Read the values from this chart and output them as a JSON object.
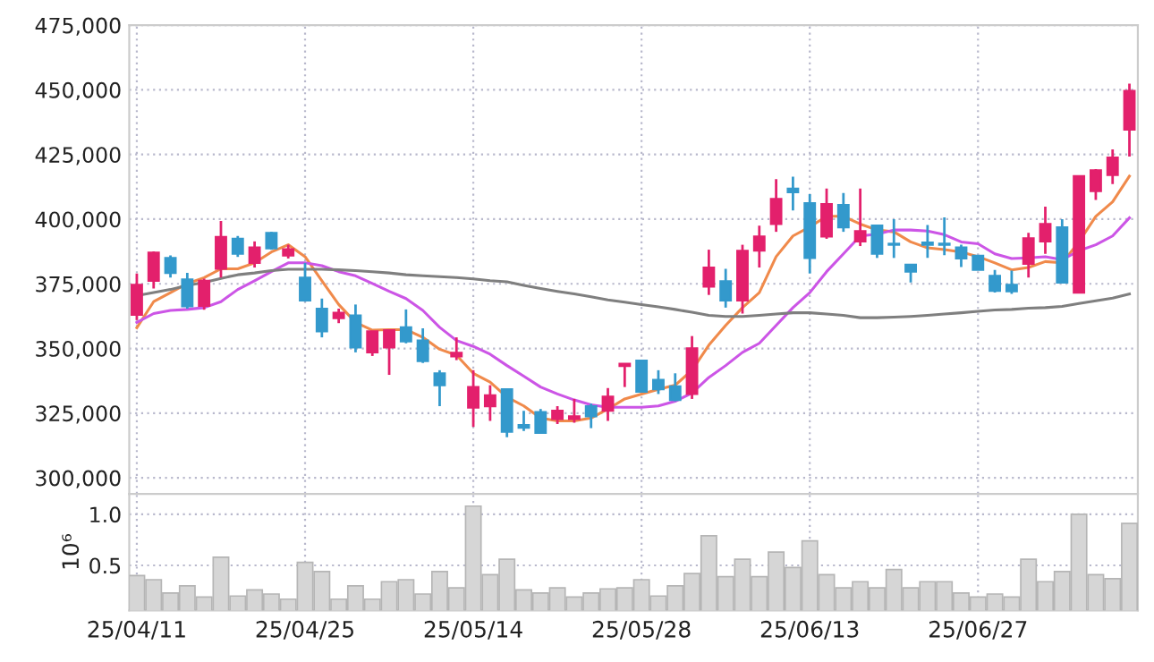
{
  "chart_data": [
    {
      "type": "candlestick",
      "categories": [
        null,
        null,
        null,
        null,
        null,
        null,
        null,
        null,
        null,
        null,
        null,
        null,
        null,
        null,
        null,
        null,
        null,
        null,
        null,
        null,
        null,
        null,
        null,
        null,
        null,
        null,
        null,
        null,
        null,
        null,
        null,
        null,
        null,
        null,
        null,
        null,
        null,
        null,
        null,
        null,
        null,
        null,
        null,
        null,
        null,
        null,
        null,
        null,
        null,
        null,
        null,
        null,
        null,
        null,
        null,
        null,
        null,
        null,
        null,
        null
      ],
      "ohlc": [
        [
          363000,
          379000,
          361000,
          374600
        ],
        [
          376200,
          387500,
          373200,
          387100
        ],
        [
          385000,
          386000,
          377400,
          379200
        ],
        [
          376700,
          379200,
          365400,
          366300
        ],
        [
          366500,
          377000,
          365000,
          376200
        ],
        [
          380800,
          399300,
          377400,
          393100
        ],
        [
          392400,
          393500,
          385400,
          386600
        ],
        [
          383100,
          391400,
          381300,
          389100
        ],
        [
          394700,
          395100,
          388200,
          388700
        ],
        [
          385900,
          390100,
          384800,
          388400
        ],
        [
          377400,
          383100,
          368100,
          368600
        ],
        [
          365400,
          369300,
          354300,
          356600
        ],
        [
          361700,
          365400,
          359800,
          363800
        ],
        [
          362800,
          367000,
          348500,
          350400
        ],
        [
          348500,
          356600,
          347100,
          356600
        ],
        [
          350400,
          357100,
          339800,
          357100
        ],
        [
          358200,
          365100,
          352000,
          352700
        ],
        [
          353100,
          357800,
          344400,
          345100
        ],
        [
          340400,
          341600,
          327700,
          335800
        ],
        [
          346900,
          354300,
          345500,
          348300
        ],
        [
          327100,
          341600,
          319700,
          335100
        ],
        [
          327700,
          335800,
          322000,
          331900
        ],
        [
          334200,
          334200,
          315700,
          317800
        ],
        [
          320400,
          325900,
          318100,
          319400
        ],
        [
          325400,
          326600,
          317400,
          317400
        ],
        [
          322700,
          327700,
          320800,
          325900
        ],
        [
          322700,
          330500,
          321300,
          323800
        ],
        [
          327700,
          328700,
          319200,
          323800
        ],
        [
          325900,
          334700,
          322000,
          331400
        ],
        [
          343200,
          344100,
          335100,
          344100
        ],
        [
          345300,
          345300,
          333300,
          333300
        ],
        [
          337900,
          341600,
          332400,
          334200
        ],
        [
          335400,
          340400,
          329600,
          330100
        ],
        [
          332400,
          354800,
          330500,
          350100
        ],
        [
          373900,
          388200,
          370700,
          381300
        ],
        [
          376000,
          380800,
          365800,
          368600
        ],
        [
          368600,
          390100,
          363500,
          387800
        ],
        [
          387800,
          397500,
          381300,
          393300
        ],
        [
          398100,
          415500,
          395100,
          407800
        ],
        [
          411800,
          416400,
          403400,
          410400
        ],
        [
          406200,
          409700,
          379000,
          385000
        ],
        [
          393300,
          411800,
          392400,
          405800
        ],
        [
          405500,
          410100,
          395100,
          396800
        ],
        [
          391400,
          411800,
          389600,
          395400
        ],
        [
          397500,
          397500,
          385000,
          386600
        ],
        [
          390500,
          400000,
          385000,
          390100
        ],
        [
          382400,
          382400,
          375500,
          379700
        ],
        [
          391000,
          397700,
          385000,
          390100
        ],
        [
          390500,
          400700,
          386100,
          390100
        ],
        [
          389100,
          390100,
          381500,
          384800
        ],
        [
          385900,
          385900,
          380400,
          380400
        ],
        [
          378100,
          380400,
          371600,
          372300
        ],
        [
          374600,
          380100,
          371100,
          372100
        ],
        [
          382700,
          394700,
          377400,
          392600
        ],
        [
          391400,
          404800,
          386600,
          398100
        ],
        [
          396800,
          400000,
          375500,
          375500
        ],
        [
          371600,
          416600,
          371600,
          416600
        ],
        [
          410800,
          419400,
          407400,
          418900
        ],
        [
          417100,
          427000,
          413600,
          423800
        ],
        [
          434600,
          452400,
          424200,
          449600
        ]
      ],
      "colors": [
        "#e3206c",
        "#e3206c",
        "#3399cc",
        "#3399cc",
        "#e3206c",
        "#e3206c",
        "#3399cc",
        "#e3206c",
        "#3399cc",
        "#e3206c",
        "#3399cc",
        "#3399cc",
        "#e3206c",
        "#3399cc",
        "#e3206c",
        "#e3206c",
        "#3399cc",
        "#3399cc",
        "#3399cc",
        "#e3206c",
        "#e3206c",
        "#e3206c",
        "#3399cc",
        "#3399cc",
        "#3399cc",
        "#e3206c",
        "#e3206c",
        "#3399cc",
        "#e3206c",
        "#e3206c",
        "#3399cc",
        "#3399cc",
        "#3399cc",
        "#e3206c",
        "#e3206c",
        "#3399cc",
        "#e3206c",
        "#e3206c",
        "#e3206c",
        "#3399cc",
        "#3399cc",
        "#e3206c",
        "#3399cc",
        "#e3206c",
        "#3399cc",
        "#3399cc",
        "#3399cc",
        "#3399cc",
        "#3399cc",
        "#3399cc",
        "#3399cc",
        "#3399cc",
        "#3399cc",
        "#e3206c",
        "#e3206c",
        "#3399cc",
        "#e3206c",
        "#e3206c",
        "#e3206c",
        "#e3206c"
      ],
      "series": [
        {
          "type": "line",
          "color": "#f08a4b",
          "values": [
            358000,
            368100,
            371600,
            375100,
            377400,
            380800,
            380800,
            383100,
            387300,
            390100,
            385500,
            376200,
            367000,
            360100,
            357100,
            357300,
            357300,
            354300,
            349700,
            347400,
            340400,
            337000,
            331200,
            327800,
            323100,
            322000,
            322000,
            323100,
            326600,
            330500,
            332400,
            334200,
            335800,
            341600,
            351300,
            358900,
            365800,
            371600,
            385500,
            393500,
            397000,
            401100,
            401100,
            398100,
            395800,
            395100,
            391200,
            388900,
            388200,
            387300,
            385500,
            383100,
            380400,
            381300,
            383600,
            383100,
            391200,
            401100,
            406700,
            416600
          ]
        },
        {
          "type": "line",
          "color": "#cc55e6",
          "values": [
            360100,
            363500,
            364700,
            365100,
            365800,
            368100,
            372800,
            376200,
            379700,
            383100,
            383100,
            382000,
            379700,
            378100,
            375100,
            372100,
            369300,
            364700,
            358200,
            353100,
            350800,
            347800,
            343400,
            339300,
            335100,
            332400,
            330100,
            328200,
            327300,
            327300,
            327300,
            327800,
            329600,
            332800,
            338800,
            343400,
            348500,
            352000,
            358900,
            365800,
            371600,
            379700,
            386600,
            393500,
            394200,
            395800,
            395800,
            395400,
            394000,
            391200,
            390500,
            386600,
            384800,
            385000,
            385500,
            384300,
            387800,
            390100,
            393500,
            400500
          ]
        },
        {
          "type": "line",
          "color": "#7f7f7f",
          "values": [
            370400,
            371600,
            372800,
            374400,
            375500,
            377100,
            378500,
            379200,
            380100,
            380600,
            380600,
            380600,
            380400,
            380100,
            379700,
            379200,
            378500,
            378100,
            377800,
            377400,
            376900,
            376200,
            375800,
            374400,
            373200,
            372100,
            371100,
            370000,
            368800,
            367900,
            367000,
            366100,
            365100,
            364000,
            362800,
            362400,
            362400,
            362800,
            363300,
            363800,
            363800,
            363300,
            362800,
            361900,
            361900,
            362100,
            362400,
            362800,
            363300,
            363800,
            364400,
            364900,
            365100,
            365600,
            365800,
            366300,
            367400,
            368400,
            369500,
            371100
          ]
        }
      ],
      "ylim": [
        293800,
        475000
      ],
      "yticks": [
        {
          "value": 300000,
          "label": "300,000"
        },
        {
          "value": 325000,
          "label": "325,000"
        },
        {
          "value": 350000,
          "label": "350,000"
        },
        {
          "value": 375000,
          "label": "375,000"
        },
        {
          "value": 400000,
          "label": "400,000"
        },
        {
          "value": 425000,
          "label": "425,000"
        },
        {
          "value": 450000,
          "label": "450,000"
        },
        {
          "value": 475000,
          "label": "475,000"
        }
      ],
      "grid": true,
      "tick_labels": "y"
    },
    {
      "type": "bar",
      "categories": [
        "25/04/11",
        null,
        null,
        null,
        null,
        null,
        null,
        null,
        null,
        null,
        "25/04/25",
        null,
        null,
        null,
        null,
        null,
        null,
        null,
        null,
        null,
        "25/05/14",
        null,
        null,
        null,
        null,
        null,
        null,
        null,
        null,
        null,
        "25/05/28",
        null,
        null,
        null,
        null,
        null,
        null,
        null,
        null,
        null,
        "25/06/13",
        null,
        null,
        null,
        null,
        null,
        null,
        null,
        null,
        null,
        "25/06/27",
        null,
        null,
        null,
        null,
        null,
        null,
        null,
        null,
        null
      ],
      "values": [
        0.4,
        0.36,
        0.23,
        0.3,
        0.19,
        0.58,
        0.2,
        0.26,
        0.22,
        0.17,
        0.53,
        0.44,
        0.17,
        0.3,
        0.17,
        0.34,
        0.36,
        0.22,
        0.44,
        0.28,
        1.08,
        0.41,
        0.56,
        0.26,
        0.23,
        0.28,
        0.19,
        0.23,
        0.27,
        0.28,
        0.36,
        0.2,
        0.3,
        0.42,
        0.79,
        0.39,
        0.56,
        0.39,
        0.63,
        0.48,
        0.74,
        0.41,
        0.28,
        0.34,
        0.28,
        0.46,
        0.28,
        0.34,
        0.34,
        0.23,
        0.19,
        0.22,
        0.19,
        0.56,
        0.34,
        0.44,
        1.0,
        0.41,
        0.37,
        0.91
      ],
      "color": "#d6d6d6",
      "ylabel": "10⁶",
      "ylim": [
        0.06,
        1.2
      ],
      "yticks": [
        0.5,
        {
          "value": 1.0,
          "label": "1.0"
        }
      ],
      "grid": true
    }
  ]
}
